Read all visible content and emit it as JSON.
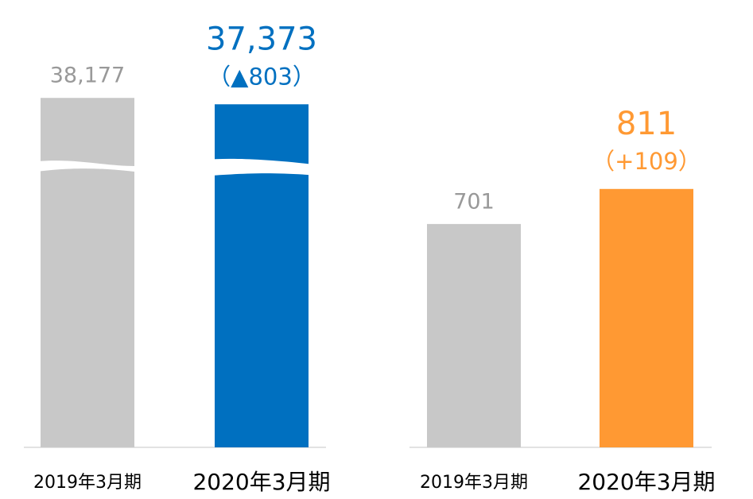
{
  "chart_data": [
    {
      "type": "bar",
      "axis_break": true,
      "categories": [
        "2019年3月期",
        "2020年3月期"
      ],
      "values": [
        38177,
        37373
      ],
      "value_labels": [
        "38,177",
        "37,373"
      ],
      "colors": [
        "#c8c8c8",
        "#0070c0"
      ],
      "annotation": "（▲803）",
      "ylim": [
        29000,
        39000
      ]
    },
    {
      "type": "bar",
      "categories": [
        "2019年3月期",
        "2020年3月期"
      ],
      "values": [
        701,
        811
      ],
      "colors": [
        "#c8c8c8",
        "#ff9933"
      ],
      "annotation": "（+109）",
      "ylim": [
        0,
        1000
      ]
    }
  ]
}
